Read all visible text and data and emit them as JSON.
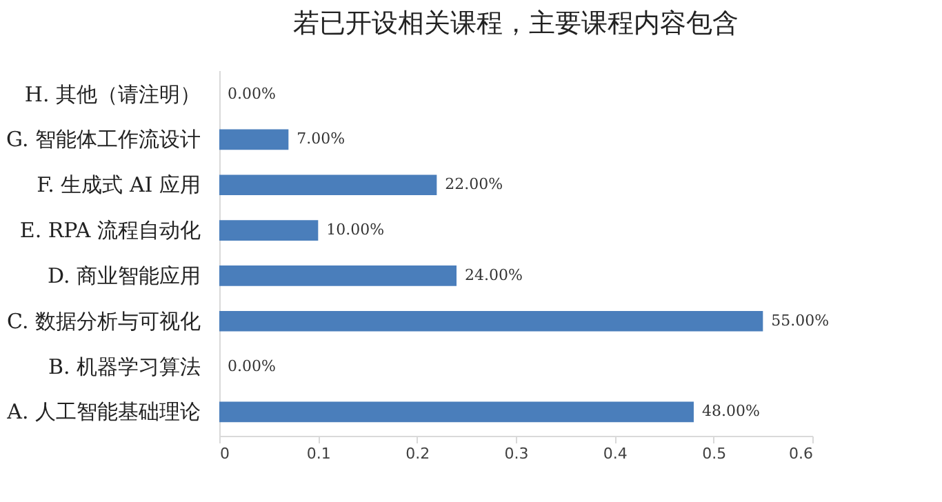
{
  "chart_data": {
    "type": "bar",
    "orientation": "horizontal",
    "title": "若已开设相关课程，主要课程内容包含",
    "categories": [
      "H. 其他（请注明）",
      "G. 智能体工作流设计",
      "F. 生成式 AI 应用",
      "E. RPA 流程自动化",
      "D. 商业智能应用",
      "C. 数据分析与可视化",
      "B. 机器学习算法",
      "A. 人工智能基础理论"
    ],
    "values": [
      0,
      0.07,
      0.22,
      0.1,
      0.24,
      0.55,
      0,
      0.48
    ],
    "value_labels": [
      "0.00%",
      "7.00%",
      "22.00%",
      "10.00%",
      "24.00%",
      "55.00%",
      "0.00%",
      "48.00%"
    ],
    "color": "#4a7ebb",
    "xlim": [
      0,
      0.6
    ],
    "xticks": [
      0,
      0.1,
      0.2,
      0.3,
      0.4,
      0.5,
      0.6
    ],
    "grid": false
  }
}
